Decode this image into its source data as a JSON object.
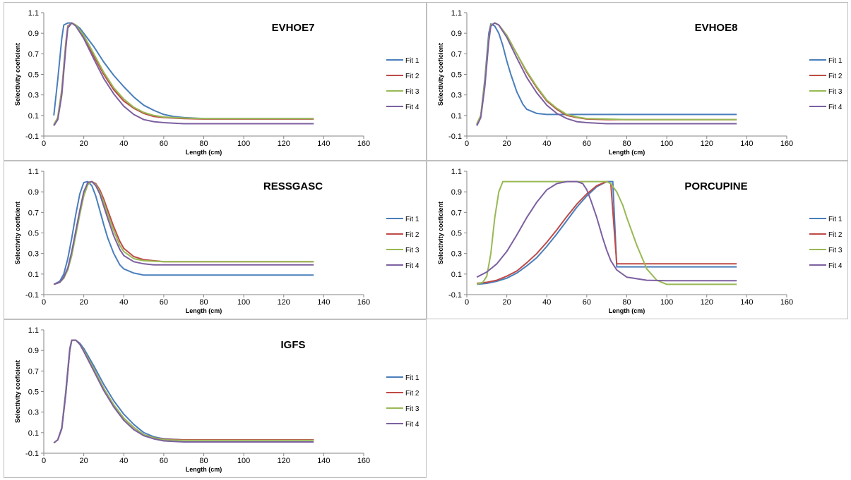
{
  "colors": {
    "fit1": "#4a7ebb",
    "fit2": "#be4b48",
    "fit3": "#98b954",
    "fit4": "#7d60a0",
    "border": "#bfbfbf"
  },
  "chart_data": [
    {
      "type": "line",
      "title": "EVHOE7",
      "xlabel": "Length (cm)",
      "ylabel": "Selectivity coeficient",
      "xlim": [
        0,
        160
      ],
      "ylim": [
        -0.1,
        1.1
      ],
      "xticks": [
        "0",
        "20",
        "40",
        "60",
        "80",
        "100",
        "120",
        "140",
        "160"
      ],
      "yticks": [
        "1.1",
        "0.9",
        "0.7",
        "0.5",
        "0.3",
        "0.1",
        "-0.1"
      ],
      "grid": false,
      "legend": "right",
      "series": [
        {
          "name": "Fit 1",
          "x": [
            5,
            7,
            9,
            10,
            12,
            14,
            16,
            18,
            20,
            25,
            30,
            35,
            40,
            45,
            50,
            55,
            60,
            65,
            70,
            80,
            100,
            135
          ],
          "y": [
            0.1,
            0.45,
            0.85,
            0.98,
            1.0,
            1.0,
            0.98,
            0.95,
            0.9,
            0.77,
            0.62,
            0.49,
            0.38,
            0.28,
            0.2,
            0.15,
            0.11,
            0.09,
            0.08,
            0.07,
            0.07,
            0.07
          ]
        },
        {
          "name": "Fit 2",
          "x": [
            5,
            7,
            9,
            11,
            12,
            14,
            16,
            20,
            25,
            30,
            35,
            40,
            45,
            50,
            55,
            60,
            70,
            80,
            100,
            135
          ],
          "y": [
            0.01,
            0.08,
            0.35,
            0.8,
            0.97,
            1.0,
            0.98,
            0.87,
            0.68,
            0.5,
            0.35,
            0.24,
            0.17,
            0.12,
            0.09,
            0.08,
            0.07,
            0.065,
            0.065,
            0.065
          ]
        },
        {
          "name": "Fit 3",
          "x": [
            5,
            7,
            9,
            11,
            12,
            14,
            16,
            20,
            25,
            30,
            35,
            40,
            45,
            50,
            55,
            60,
            70,
            80,
            100,
            135
          ],
          "y": [
            0.01,
            0.08,
            0.34,
            0.78,
            0.96,
            1.0,
            0.98,
            0.88,
            0.7,
            0.52,
            0.37,
            0.26,
            0.18,
            0.13,
            0.1,
            0.085,
            0.075,
            0.07,
            0.07,
            0.07
          ]
        },
        {
          "name": "Fit 4",
          "x": [
            5,
            7,
            9,
            11,
            12,
            14,
            16,
            20,
            25,
            30,
            35,
            40,
            45,
            50,
            55,
            60,
            70,
            80,
            100,
            135
          ],
          "y": [
            0.0,
            0.06,
            0.3,
            0.75,
            0.95,
            1.0,
            0.97,
            0.85,
            0.65,
            0.46,
            0.31,
            0.19,
            0.11,
            0.06,
            0.04,
            0.03,
            0.02,
            0.02,
            0.02,
            0.02
          ]
        }
      ]
    },
    {
      "type": "line",
      "title": "EVHOE8",
      "xlabel": "Length (cm)",
      "ylabel": "Selectivity coeficient",
      "xlim": [
        0,
        160
      ],
      "ylim": [
        -0.1,
        1.1
      ],
      "xticks": [
        "0",
        "20",
        "40",
        "60",
        "80",
        "100",
        "120",
        "140",
        "160"
      ],
      "yticks": [
        "1.1",
        "0.9",
        "0.7",
        "0.5",
        "0.3",
        "0.1",
        "-0.1"
      ],
      "grid": false,
      "legend": "right",
      "series": [
        {
          "name": "Fit 1",
          "x": [
            5,
            7,
            9,
            11,
            12,
            14,
            16,
            18,
            20,
            22,
            25,
            28,
            30,
            35,
            40,
            45,
            50,
            60,
            80,
            100,
            135
          ],
          "y": [
            0.01,
            0.1,
            0.45,
            0.9,
            0.99,
            0.97,
            0.9,
            0.78,
            0.63,
            0.5,
            0.33,
            0.21,
            0.16,
            0.12,
            0.11,
            0.11,
            0.11,
            0.11,
            0.11,
            0.11,
            0.11
          ]
        },
        {
          "name": "Fit 2",
          "x": [
            5,
            7,
            9,
            11,
            12,
            14,
            16,
            20,
            25,
            30,
            35,
            40,
            45,
            50,
            55,
            60,
            70,
            80,
            100,
            135
          ],
          "y": [
            0.02,
            0.1,
            0.42,
            0.85,
            0.98,
            1.0,
            0.98,
            0.88,
            0.7,
            0.52,
            0.37,
            0.24,
            0.16,
            0.1,
            0.08,
            0.065,
            0.06,
            0.06,
            0.06,
            0.06
          ]
        },
        {
          "name": "Fit 3",
          "x": [
            5,
            7,
            9,
            11,
            12,
            14,
            16,
            20,
            25,
            30,
            35,
            40,
            45,
            50,
            55,
            60,
            70,
            80,
            100,
            135
          ],
          "y": [
            0.02,
            0.1,
            0.42,
            0.85,
            0.98,
            1.0,
            0.98,
            0.88,
            0.7,
            0.53,
            0.38,
            0.25,
            0.17,
            0.11,
            0.085,
            0.07,
            0.065,
            0.06,
            0.06,
            0.06
          ]
        },
        {
          "name": "Fit 4",
          "x": [
            5,
            7,
            9,
            11,
            12,
            14,
            16,
            20,
            25,
            30,
            35,
            40,
            45,
            50,
            55,
            60,
            70,
            80,
            100,
            135
          ],
          "y": [
            0.0,
            0.08,
            0.38,
            0.82,
            0.97,
            1.0,
            0.98,
            0.86,
            0.66,
            0.47,
            0.32,
            0.2,
            0.12,
            0.07,
            0.04,
            0.03,
            0.02,
            0.02,
            0.02,
            0.02
          ]
        }
      ]
    },
    {
      "type": "line",
      "title": "RESSGASC",
      "xlabel": "Length (cm)",
      "ylabel": "Selectivity coeficient",
      "xlim": [
        0,
        160
      ],
      "ylim": [
        -0.1,
        1.1
      ],
      "xticks": [
        "0",
        "20",
        "40",
        "60",
        "80",
        "100",
        "120",
        "140",
        "160"
      ],
      "yticks": [
        "1.1",
        "0.9",
        "0.7",
        "0.5",
        "0.3",
        "0.1",
        "-0.1"
      ],
      "grid": false,
      "legend": "right",
      "series": [
        {
          "name": "Fit 1",
          "x": [
            5,
            8,
            10,
            12,
            14,
            16,
            18,
            20,
            22,
            24,
            26,
            28,
            30,
            32,
            35,
            38,
            40,
            45,
            50,
            60,
            80,
            100,
            135
          ],
          "y": [
            0.0,
            0.03,
            0.1,
            0.25,
            0.45,
            0.68,
            0.88,
            0.99,
            1.0,
            0.96,
            0.86,
            0.72,
            0.58,
            0.45,
            0.3,
            0.19,
            0.15,
            0.11,
            0.09,
            0.09,
            0.09,
            0.09,
            0.09
          ]
        },
        {
          "name": "Fit 2",
          "x": [
            5,
            8,
            10,
            12,
            14,
            16,
            18,
            20,
            22,
            24,
            26,
            28,
            30,
            32,
            35,
            38,
            40,
            45,
            50,
            55,
            60,
            80,
            100,
            135
          ],
          "y": [
            0.0,
            0.02,
            0.06,
            0.15,
            0.3,
            0.5,
            0.7,
            0.88,
            0.98,
            1.0,
            0.98,
            0.92,
            0.83,
            0.72,
            0.56,
            0.42,
            0.35,
            0.27,
            0.24,
            0.23,
            0.22,
            0.22,
            0.22,
            0.22
          ]
        },
        {
          "name": "Fit 3",
          "x": [
            5,
            8,
            10,
            12,
            14,
            16,
            18,
            20,
            22,
            24,
            26,
            28,
            30,
            32,
            35,
            38,
            40,
            45,
            50,
            55,
            60,
            80,
            100,
            135
          ],
          "y": [
            0.0,
            0.02,
            0.06,
            0.14,
            0.28,
            0.48,
            0.68,
            0.86,
            0.97,
            1.0,
            0.97,
            0.9,
            0.8,
            0.68,
            0.52,
            0.38,
            0.32,
            0.25,
            0.23,
            0.225,
            0.22,
            0.22,
            0.22,
            0.22
          ]
        },
        {
          "name": "Fit 4",
          "x": [
            5,
            8,
            10,
            12,
            14,
            16,
            18,
            20,
            22,
            24,
            26,
            28,
            30,
            32,
            35,
            38,
            40,
            45,
            50,
            55,
            60,
            80,
            100,
            135
          ],
          "y": [
            0.0,
            0.02,
            0.07,
            0.16,
            0.32,
            0.52,
            0.72,
            0.9,
            0.99,
            1.0,
            0.96,
            0.88,
            0.76,
            0.64,
            0.47,
            0.34,
            0.28,
            0.22,
            0.2,
            0.19,
            0.19,
            0.19,
            0.19,
            0.19
          ]
        }
      ]
    },
    {
      "type": "line",
      "title": "PORCUPINE",
      "xlabel": "Length (cm)",
      "ylabel": "Selectivity coeficient",
      "xlim": [
        0,
        160
      ],
      "ylim": [
        -0.1,
        1.1
      ],
      "xticks": [
        "0",
        "20",
        "40",
        "60",
        "80",
        "100",
        "120",
        "140",
        "160"
      ],
      "yticks": [
        "1.1",
        "0.9",
        "0.7",
        "0.5",
        "0.3",
        "0.1",
        "-0.1"
      ],
      "grid": false,
      "legend": "right",
      "series": [
        {
          "name": "Fit 1",
          "x": [
            5,
            10,
            15,
            20,
            25,
            30,
            35,
            40,
            45,
            50,
            55,
            60,
            65,
            70,
            73,
            75,
            80,
            100,
            135
          ],
          "y": [
            0.0,
            0.01,
            0.03,
            0.06,
            0.11,
            0.18,
            0.26,
            0.37,
            0.49,
            0.62,
            0.75,
            0.86,
            0.95,
            1.0,
            1.0,
            0.17,
            0.17,
            0.17,
            0.17
          ]
        },
        {
          "name": "Fit 2",
          "x": [
            5,
            10,
            15,
            20,
            25,
            30,
            35,
            40,
            45,
            50,
            55,
            60,
            65,
            70,
            72,
            75,
            80,
            100,
            135
          ],
          "y": [
            0.01,
            0.02,
            0.04,
            0.08,
            0.13,
            0.21,
            0.3,
            0.41,
            0.53,
            0.66,
            0.78,
            0.88,
            0.96,
            1.0,
            0.98,
            0.2,
            0.2,
            0.2,
            0.2
          ]
        },
        {
          "name": "Fit 3",
          "x": [
            5,
            8,
            10,
            12,
            14,
            16,
            18,
            20,
            40,
            60,
            70,
            72,
            75,
            78,
            80,
            85,
            90,
            95,
            100,
            135
          ],
          "y": [
            0.0,
            0.02,
            0.08,
            0.3,
            0.65,
            0.9,
            1.0,
            1.0,
            1.0,
            1.0,
            1.0,
            0.98,
            0.9,
            0.77,
            0.65,
            0.38,
            0.15,
            0.04,
            0.0,
            0.0
          ]
        },
        {
          "name": "Fit 4",
          "x": [
            5,
            10,
            15,
            20,
            25,
            30,
            35,
            40,
            45,
            50,
            55,
            58,
            60,
            62,
            65,
            68,
            70,
            72,
            75,
            80,
            90,
            100,
            135
          ],
          "y": [
            0.07,
            0.12,
            0.2,
            0.32,
            0.48,
            0.65,
            0.8,
            0.92,
            0.98,
            1.0,
            1.0,
            0.98,
            0.92,
            0.82,
            0.65,
            0.45,
            0.33,
            0.23,
            0.14,
            0.07,
            0.04,
            0.035,
            0.035
          ]
        }
      ]
    },
    {
      "type": "line",
      "title": "IGFS",
      "xlabel": "Length (cm)",
      "ylabel": "Selectivity coeficient",
      "xlim": [
        0,
        160
      ],
      "ylim": [
        -0.1,
        1.1
      ],
      "xticks": [
        "0",
        "20",
        "40",
        "60",
        "80",
        "100",
        "120",
        "140",
        "160"
      ],
      "yticks": [
        "1.1",
        "0.9",
        "0.7",
        "0.5",
        "0.3",
        "0.1",
        "-0.1"
      ],
      "grid": false,
      "legend": "right",
      "series": [
        {
          "name": "Fit 1",
          "x": [
            5,
            7,
            9,
            11,
            13,
            14,
            16,
            18,
            20,
            25,
            30,
            35,
            40,
            45,
            50,
            55,
            60,
            70,
            80,
            100,
            135
          ],
          "y": [
            0.0,
            0.03,
            0.15,
            0.5,
            0.92,
            1.0,
            1.0,
            0.97,
            0.92,
            0.75,
            0.57,
            0.41,
            0.28,
            0.18,
            0.1,
            0.06,
            0.04,
            0.03,
            0.03,
            0.03,
            0.03
          ]
        },
        {
          "name": "Fit 2",
          "x": [
            5,
            7,
            9,
            11,
            13,
            14,
            16,
            18,
            20,
            25,
            30,
            35,
            40,
            45,
            50,
            55,
            60,
            70,
            80,
            100,
            135
          ],
          "y": [
            0.0,
            0.03,
            0.14,
            0.48,
            0.9,
            1.0,
            1.0,
            0.96,
            0.9,
            0.72,
            0.53,
            0.37,
            0.24,
            0.15,
            0.08,
            0.05,
            0.035,
            0.03,
            0.03,
            0.03,
            0.03
          ]
        },
        {
          "name": "Fit 3",
          "x": [
            5,
            7,
            9,
            11,
            13,
            14,
            16,
            18,
            20,
            25,
            30,
            35,
            40,
            45,
            50,
            55,
            60,
            70,
            80,
            100,
            135
          ],
          "y": [
            0.0,
            0.03,
            0.14,
            0.48,
            0.9,
            1.0,
            1.0,
            0.96,
            0.9,
            0.72,
            0.53,
            0.37,
            0.24,
            0.15,
            0.08,
            0.05,
            0.03,
            0.025,
            0.025,
            0.025,
            0.025
          ]
        },
        {
          "name": "Fit 4",
          "x": [
            5,
            7,
            9,
            11,
            13,
            14,
            16,
            18,
            20,
            25,
            30,
            35,
            40,
            45,
            50,
            55,
            60,
            70,
            80,
            100,
            135
          ],
          "y": [
            0.0,
            0.03,
            0.14,
            0.47,
            0.9,
            1.0,
            1.0,
            0.96,
            0.89,
            0.7,
            0.51,
            0.35,
            0.22,
            0.13,
            0.07,
            0.04,
            0.02,
            0.01,
            0.01,
            0.01,
            0.01
          ]
        }
      ]
    }
  ]
}
